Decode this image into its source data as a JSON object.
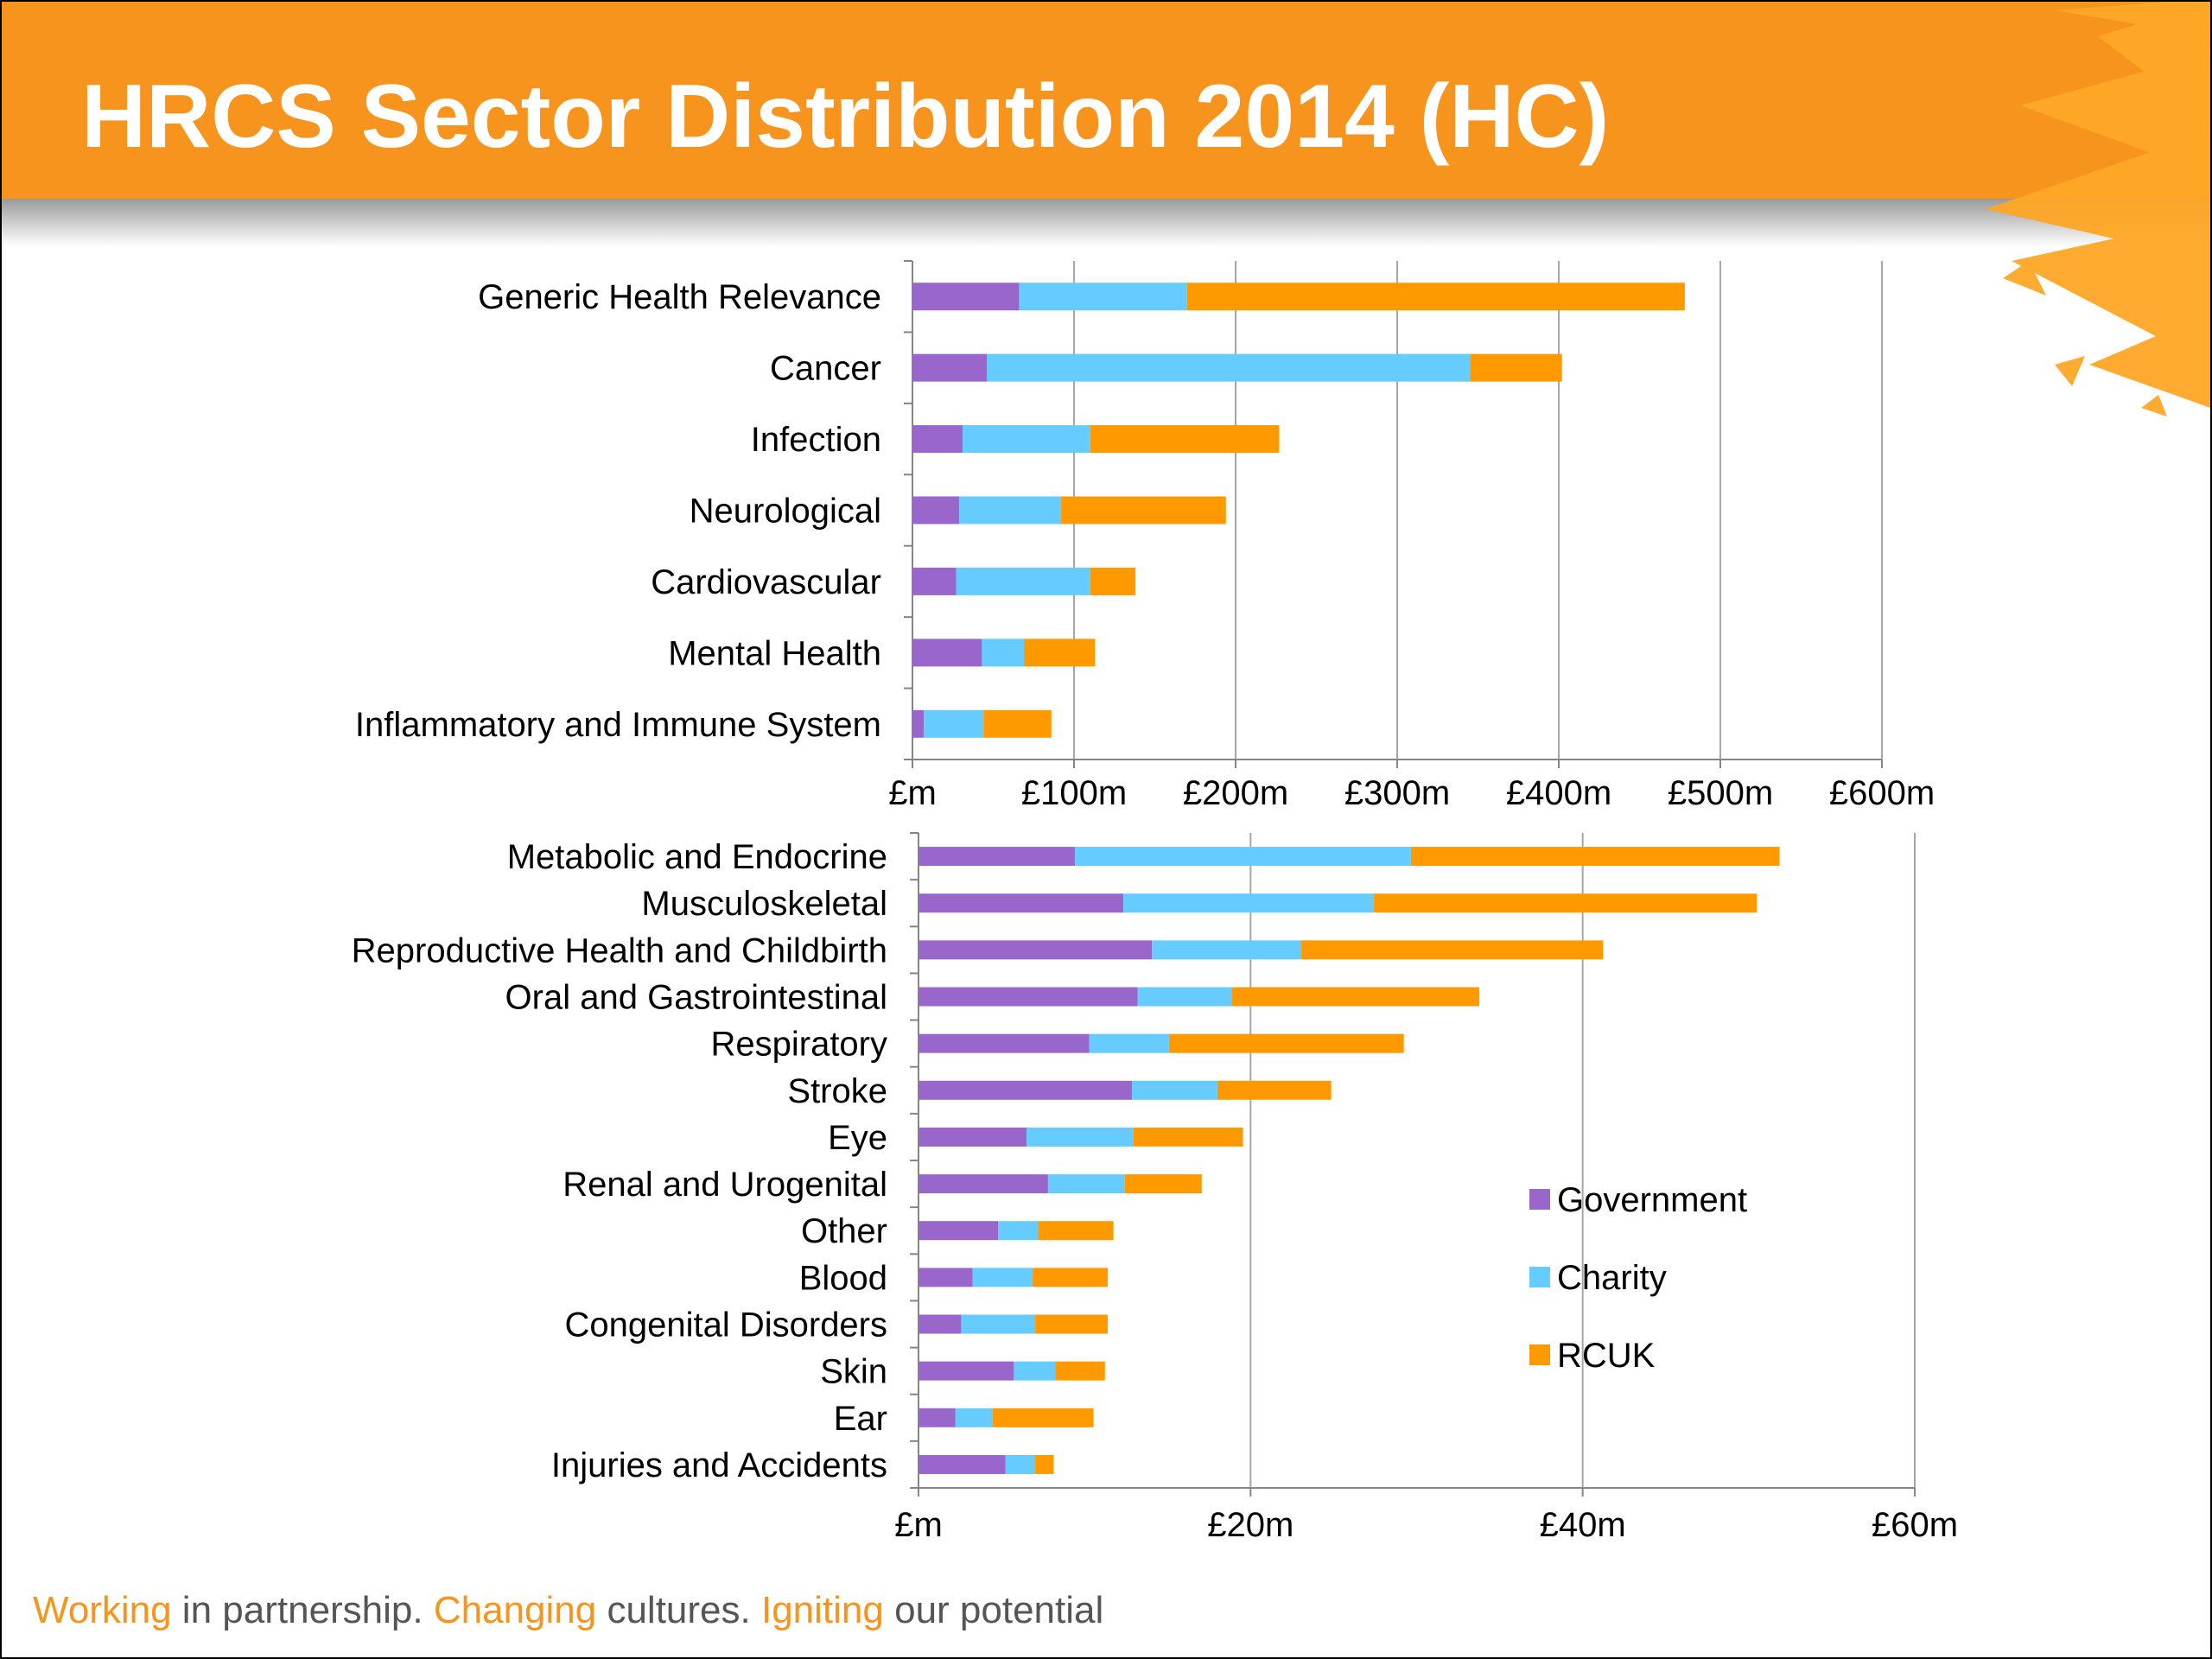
{
  "header": {
    "title": "HRCS Sector Distribution 2014 (HC)"
  },
  "colors": {
    "Government": "#9966cc",
    "Charity": "#66ccff",
    "RCUK": "#ff9900",
    "brand_orange": "#f7941d"
  },
  "legend": [
    {
      "name": "Government",
      "color": "#9966cc"
    },
    {
      "name": "Charity",
      "color": "#66ccff"
    },
    {
      "name": "RCUK",
      "color": "#ff9900"
    }
  ],
  "chart_data": [
    {
      "type": "bar",
      "orientation": "horizontal",
      "stacked": true,
      "categories": [
        "Generic Health Relevance",
        "Cancer",
        "Infection",
        "Neurological",
        "Cardiovascular",
        "Mental Health",
        "Inflammatory and Immune System"
      ],
      "series": [
        {
          "name": "Government",
          "values": [
            66,
            46,
            31,
            29,
            27,
            43,
            7
          ]
        },
        {
          "name": "Charity",
          "values": [
            104,
            299,
            79,
            63,
            83,
            26,
            37
          ]
        },
        {
          "name": "RCUK",
          "values": [
            308,
            57,
            117,
            102,
            28,
            44,
            42
          ]
        }
      ],
      "xticks": [
        "£m",
        "£100m",
        "£200m",
        "£300m",
        "£400m",
        "£500m",
        "£600m"
      ],
      "xlim": [
        0,
        600
      ],
      "grid": true
    },
    {
      "type": "bar",
      "orientation": "horizontal",
      "stacked": true,
      "categories": [
        "Metabolic and Endocrine",
        "Musculoskeletal",
        "Reproductive Health and Childbirth",
        "Oral and Gastrointestinal",
        "Respiratory",
        "Stroke",
        "Eye",
        "Renal and Urogenital",
        "Other",
        "Blood",
        "Congenital Disorders",
        "Skin",
        "Ear",
        "Injuries and Accidents"
      ],
      "series": [
        {
          "name": "Government",
          "values": [
            11,
            14.4,
            16.4,
            15.4,
            12,
            15,
            7.6,
            9.1,
            5.6,
            3.8,
            3,
            6.7,
            2.6,
            6.1
          ]
        },
        {
          "name": "Charity",
          "values": [
            23.6,
            17.6,
            10.5,
            6.6,
            5.6,
            6,
            7.5,
            5.4,
            2.8,
            4.2,
            5.2,
            2.9,
            2.6,
            2.1
          ]
        },
        {
          "name": "RCUK",
          "values": [
            25.9,
            26.9,
            21.2,
            17.4,
            16.5,
            8,
            7.7,
            5.4,
            5.3,
            5.3,
            5.1,
            3.5,
            7.1,
            1.3
          ]
        }
      ],
      "xticks": [
        "£m",
        "£20m",
        "£40m",
        "£60m"
      ],
      "xlim": [
        0,
        70
      ],
      "grid": true,
      "legend_position": "lower-right"
    }
  ],
  "footer": {
    "tag1": "Working",
    "text1": " in partnership. ",
    "tag2": "Changing",
    "text2": " cultures. ",
    "tag3": "Igniting",
    "text3": " our potential"
  }
}
